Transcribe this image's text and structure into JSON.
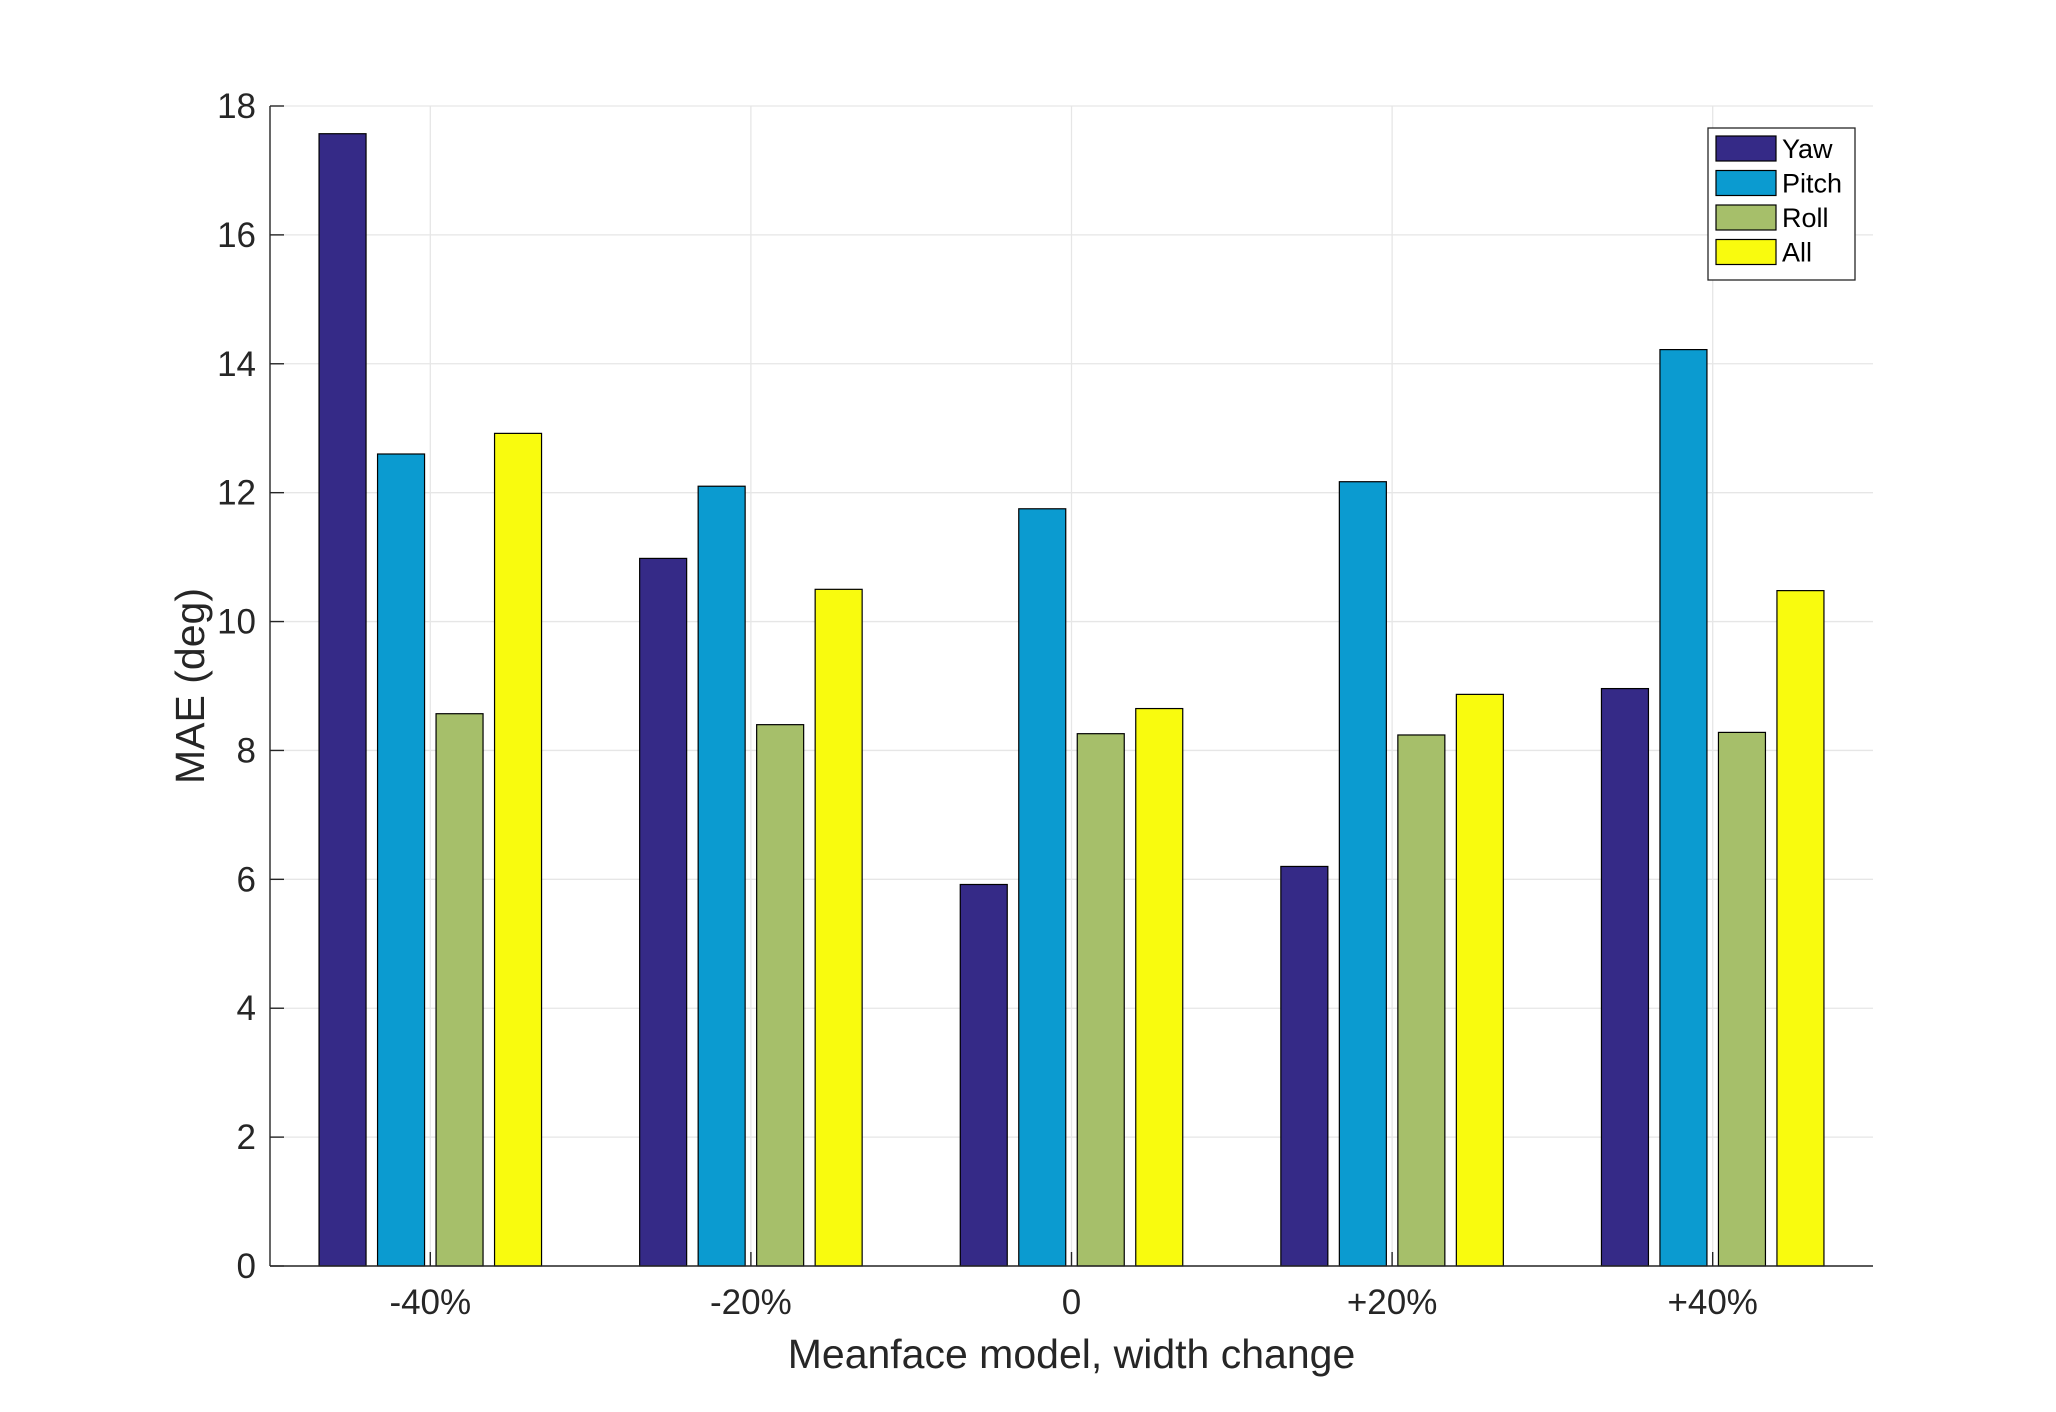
{
  "chart_data": {
    "type": "bar",
    "title": "",
    "xlabel": "Meanface model, width change",
    "ylabel": "MAE (deg)",
    "categories": [
      "-40%",
      "-20%",
      "0",
      "+20%",
      "+40%"
    ],
    "series": [
      {
        "name": "Yaw",
        "color": "#352a87",
        "values": [
          17.57,
          10.98,
          5.92,
          6.2,
          8.96
        ]
      },
      {
        "name": "Pitch",
        "color": "#0b9bd0",
        "values": [
          12.6,
          12.1,
          11.75,
          12.17,
          14.22
        ]
      },
      {
        "name": "Roll",
        "color": "#a6bf6a",
        "values": [
          8.57,
          8.4,
          8.26,
          8.24,
          8.28
        ]
      },
      {
        "name": "All",
        "color": "#f9fb0e",
        "values": [
          12.92,
          10.5,
          8.65,
          8.87,
          10.48
        ]
      }
    ],
    "ylim": [
      0,
      18
    ],
    "yticks": [
      0,
      2,
      4,
      6,
      8,
      10,
      12,
      14,
      16,
      18
    ],
    "grid": true,
    "legend_position": "top-right"
  }
}
